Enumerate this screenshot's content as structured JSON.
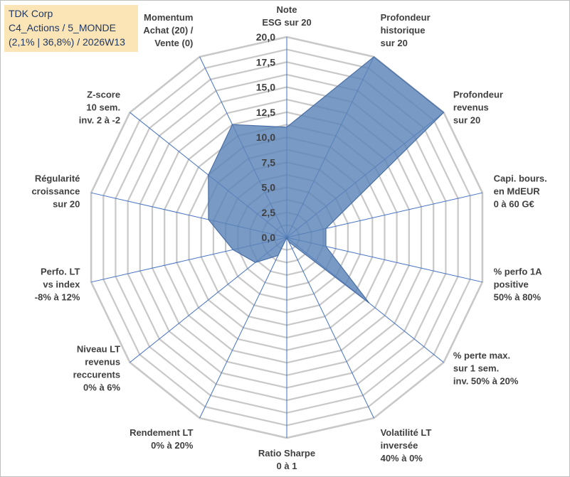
{
  "info": {
    "line1": "TDK Corp",
    "line2": "C4_Actions / 5_MONDE",
    "line3": "(2,1% | 36,8%) / 2026W13"
  },
  "colors": {
    "grid": "#c8c8c8",
    "spoke": "#4472c4",
    "fill": "#5b84b8",
    "stroke": "#4a6fa5",
    "label": "#404040",
    "info_bg": "#fbe5b6",
    "info_text": "#1f3864"
  },
  "chart_data": {
    "type": "radar",
    "title": "",
    "rmin": 0,
    "rmax": 20,
    "ticks": [
      "0,0",
      "2,5",
      "5,0",
      "7,5",
      "10,0",
      "12,5",
      "15,0",
      "17,5",
      "20,0"
    ],
    "grid_rings": 16,
    "axes": [
      [
        "Note",
        "ESG sur 20"
      ],
      [
        "Profondeur",
        "historique",
        "sur 20"
      ],
      [
        "Profondeur",
        "revenus",
        "sur 20"
      ],
      [
        "Capi. bours.",
        "en MdEUR",
        "0 à 60 G€"
      ],
      [
        "% perfo 1A",
        "positive",
        "50% à 80%"
      ],
      [
        "% perte max.",
        "sur 1 sem.",
        "inv. 50% à 20%"
      ],
      [
        "Volatilité LT",
        "inversée",
        "40% à 0%"
      ],
      [
        "Ratio Sharpe",
        "0 à 1"
      ],
      [
        "Rendement LT",
        "0% à 20%"
      ],
      [
        "Niveau LT",
        "revenus",
        "reccurents",
        "0% à 6%"
      ],
      [
        "Perfo. LT",
        "vs index",
        "-8% à 12%"
      ],
      [
        "Régularité",
        "croissance",
        "sur 20"
      ],
      [
        "Z-score",
        "10 sem.",
        "inv. 2 à -2"
      ],
      [
        "Momentum",
        "Achat (20) /",
        "Vente (0)"
      ]
    ],
    "values": [
      11.0,
      20.0,
      20.0,
      4.0,
      4.0,
      10.5,
      0.5,
      0.0,
      2.0,
      4.0,
      5.5,
      8.0,
      10.0,
      12.5
    ]
  }
}
